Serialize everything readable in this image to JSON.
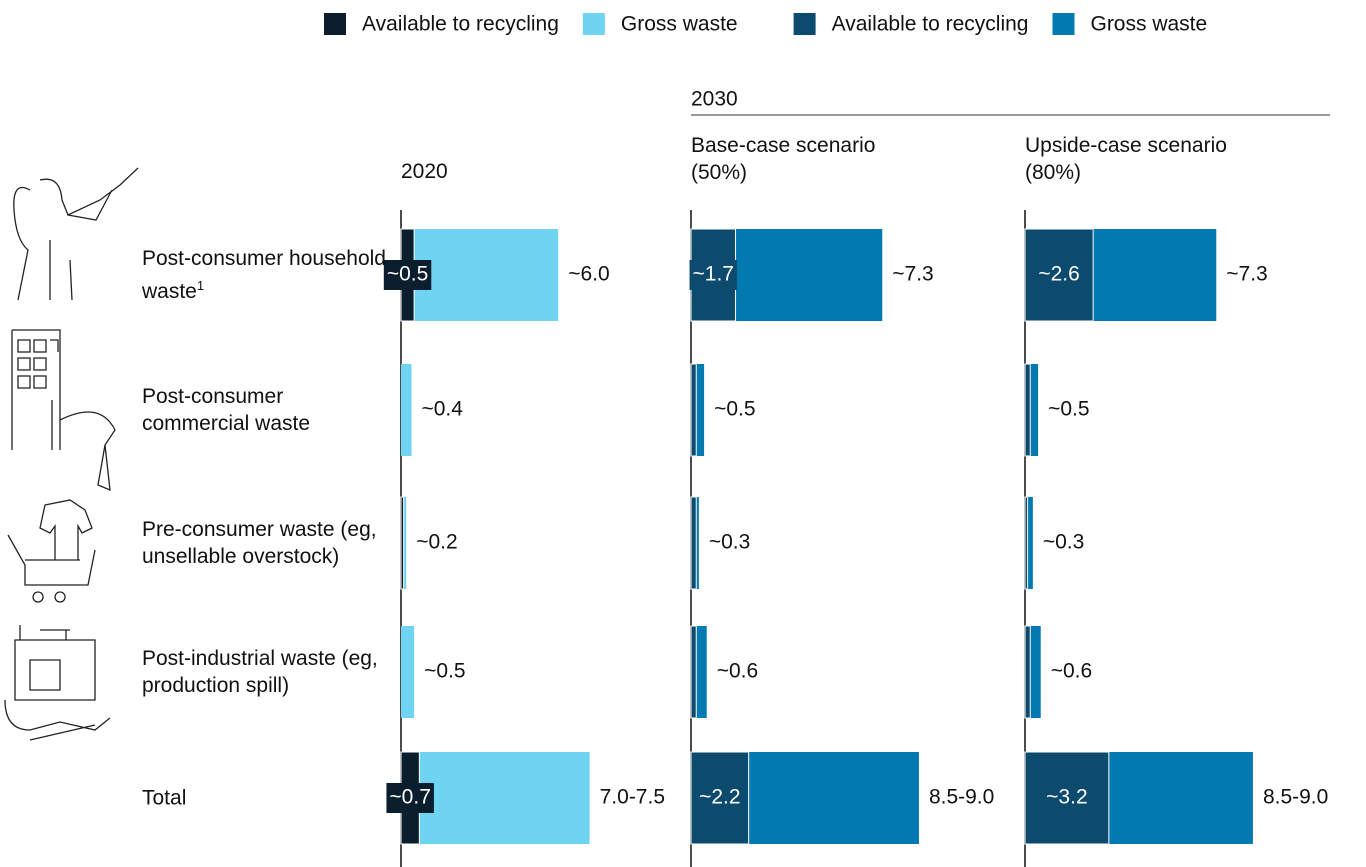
{
  "chart_data": {
    "type": "bar",
    "orientation": "horizontal",
    "overlay": true,
    "group_title": "2030",
    "categories": [
      "Post-consumer household waste",
      "Post-consumer commercial waste",
      "Pre-consumer waste (eg, unsellable overstock)",
      "Post-industrial waste (eg, production spill)",
      "Total"
    ],
    "footnote_marker": "1",
    "panels": [
      {
        "title": "2020",
        "series": [
          {
            "name": "Available to recycling",
            "color": "#0b1e2d",
            "values": [
              0.5,
              0,
              0.1,
              0,
              0.7
            ],
            "value_labels": [
              "~0.5",
              null,
              null,
              null,
              "~0.7"
            ]
          },
          {
            "name": "Gross waste",
            "color": "#6fd3f2",
            "values": [
              6.0,
              0.4,
              0.2,
              0.5,
              7.2
            ],
            "value_labels": [
              "~6.0",
              "~0.4",
              "~0.2",
              "~0.5",
              "7.0-7.5"
            ]
          }
        ]
      },
      {
        "title": "Base-case scenario (50%)",
        "series": [
          {
            "name": "Available to recycling",
            "color": "#0c4a6e",
            "values": [
              1.7,
              0.2,
              0.2,
              0.2,
              2.2
            ],
            "value_labels": [
              "~1.7",
              null,
              null,
              null,
              "~2.2"
            ]
          },
          {
            "name": "Gross waste",
            "color": "#0379b1",
            "values": [
              7.3,
              0.5,
              0.3,
              0.6,
              8.7
            ],
            "value_labels": [
              "~7.3",
              "~0.5",
              "~0.3",
              "~0.6",
              "8.5-9.0"
            ]
          }
        ]
      },
      {
        "title": "Upside-case scenario (80%)",
        "series": [
          {
            "name": "Available to recycling",
            "color": "#0c4a6e",
            "values": [
              2.6,
              0.2,
              0.1,
              0.2,
              3.2
            ],
            "value_labels": [
              "~2.6",
              null,
              null,
              null,
              "~3.2"
            ]
          },
          {
            "name": "Gross waste",
            "color": "#0379b1",
            "values": [
              7.3,
              0.5,
              0.3,
              0.6,
              8.7
            ],
            "value_labels": [
              "~7.3",
              "~0.5",
              "~0.3",
              "~0.6",
              "8.5-9.0"
            ]
          }
        ]
      }
    ]
  }
}
